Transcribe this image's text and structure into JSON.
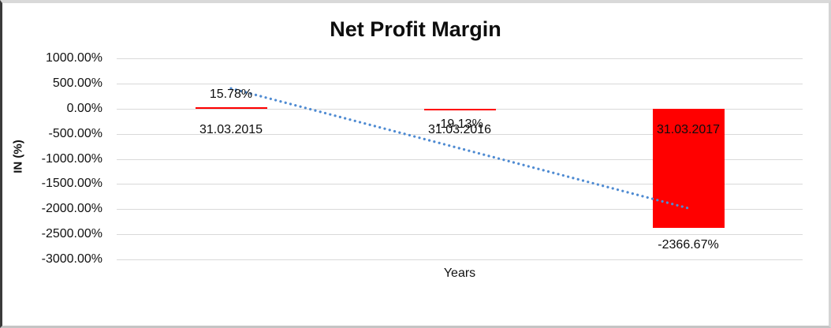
{
  "chart_data": {
    "type": "bar",
    "title": "Net Profit Margin",
    "xlabel": "Years",
    "ylabel": "IN (%)",
    "categories": [
      "31.03.2015",
      "31.03.2016",
      "31.03.2017"
    ],
    "series": [
      {
        "name": "Net Profit Margin",
        "values": [
          15.78,
          -19.13,
          -2366.67
        ],
        "data_labels": [
          "15.78%",
          "-19.13%",
          "-2366.67%"
        ],
        "color": "#ff0000"
      }
    ],
    "ylim": [
      -3000,
      1000
    ],
    "ytick_step": 500,
    "ytick_labels": [
      "1000.00%",
      "500.00%",
      "0.00%",
      "-500.00%",
      "-1000.00%",
      "-1500.00%",
      "-2000.00%",
      "-2500.00%",
      "-3000.00%"
    ],
    "ytick_values": [
      1000,
      500,
      0,
      -500,
      -1000,
      -1500,
      -2000,
      -2500,
      -3000
    ],
    "grid": "horizontal",
    "gridline_color": "#d9d9d9",
    "legend": "none",
    "trendline": {
      "type": "linear",
      "style": "dotted",
      "color": "#4f8bd2",
      "start_value": 401,
      "end_value": -1981
    }
  }
}
